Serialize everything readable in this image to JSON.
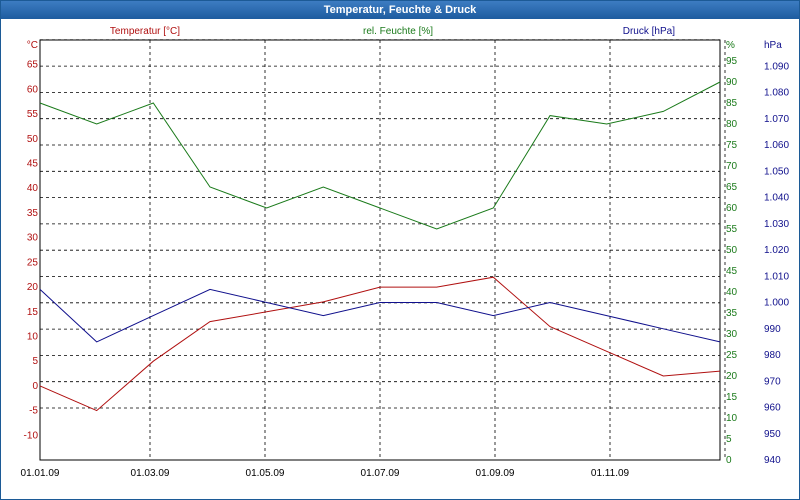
{
  "window": {
    "title": "Temperatur, Feuchte & Druck"
  },
  "chart_data": {
    "type": "line",
    "title": "Temperatur, Feuchte & Druck",
    "x_ticks": [
      "01.01.09",
      "01.03.09",
      "01.05.09",
      "01.07.09",
      "01.09.09",
      "01.11.09"
    ],
    "axes": {
      "left": {
        "unit": "°C",
        "ticks": [
          -10,
          -5,
          0,
          5,
          10,
          15,
          20,
          25,
          30,
          35,
          40,
          45,
          50,
          55,
          60,
          65
        ],
        "ylim": [
          -15,
          70
        ]
      },
      "mid": {
        "unit": "%",
        "ticks": [
          0,
          5,
          10,
          15,
          20,
          25,
          30,
          35,
          40,
          45,
          50,
          55,
          60,
          65,
          70,
          75,
          80,
          85,
          90,
          95
        ],
        "ylim": [
          0,
          100
        ]
      },
      "right": {
        "unit": "hPa",
        "ticks": [
          "940",
          "950",
          "960",
          "970",
          "980",
          "990",
          "1.000",
          "1.010",
          "1.020",
          "1.030",
          "1.040",
          "1.050",
          "1.060",
          "1.070",
          "1.080",
          "1.090"
        ],
        "ylim": [
          940,
          1100
        ]
      }
    },
    "grid": true,
    "series": [
      {
        "name": "Temperatur [°C]",
        "axis": "left",
        "color": "#b01010",
        "x": [
          "01.01.09",
          "01.02.09",
          "01.03.09",
          "01.04.09",
          "01.05.09",
          "01.06.09",
          "01.07.09",
          "01.08.09",
          "01.09.09",
          "01.10.09",
          "01.11.09",
          "01.12.09",
          "31.12.09"
        ],
        "values": [
          0,
          -5,
          5,
          13,
          15,
          17,
          20,
          20,
          22,
          12,
          7,
          2,
          3
        ]
      },
      {
        "name": "rel. Feuchte [%]",
        "axis": "mid",
        "color": "#1a7a1a",
        "x": [
          "01.01.09",
          "01.02.09",
          "01.03.09",
          "01.04.09",
          "01.05.09",
          "01.06.09",
          "01.07.09",
          "01.08.09",
          "01.09.09",
          "01.10.09",
          "01.11.09",
          "01.12.09",
          "31.12.09"
        ],
        "values": [
          85,
          80,
          85,
          65,
          60,
          65,
          60,
          55,
          60,
          82,
          80,
          83,
          90
        ]
      },
      {
        "name": "Druck [hPa]",
        "axis": "right",
        "color": "#10108c",
        "x": [
          "01.01.09",
          "01.02.09",
          "01.03.09",
          "01.04.09",
          "01.05.09",
          "01.06.09",
          "01.07.09",
          "01.08.09",
          "01.09.09",
          "01.10.09",
          "01.11.09",
          "01.12.09",
          "31.12.09"
        ],
        "values": [
          1005,
          985,
          995,
          1005,
          1000,
          995,
          1000,
          1000,
          995,
          1000,
          995,
          990,
          985
        ]
      }
    ]
  }
}
